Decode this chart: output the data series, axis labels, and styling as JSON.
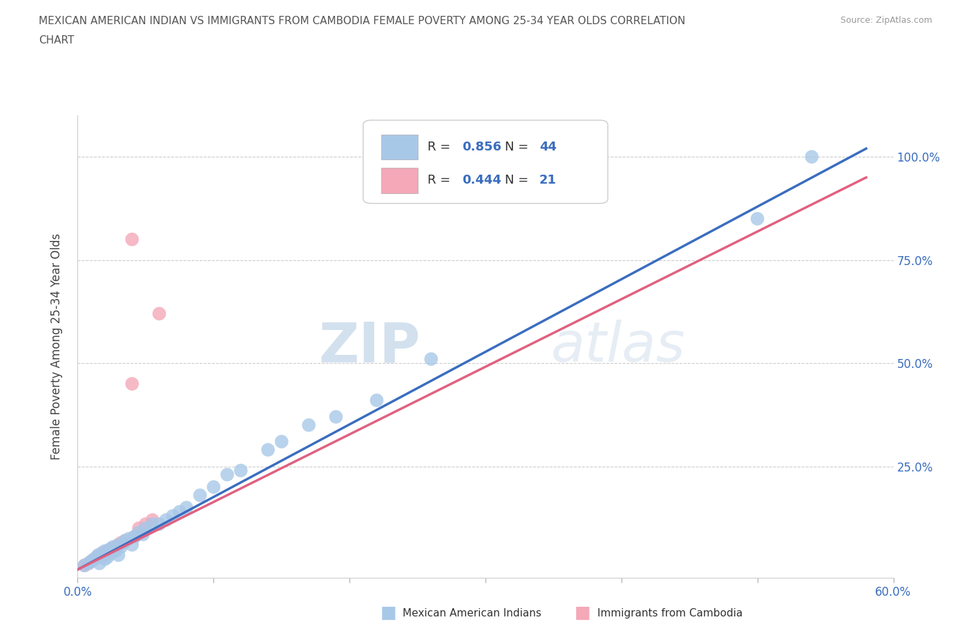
{
  "title_line1": "MEXICAN AMERICAN INDIAN VS IMMIGRANTS FROM CAMBODIA FEMALE POVERTY AMONG 25-34 YEAR OLDS CORRELATION",
  "title_line2": "CHART",
  "source": "Source: ZipAtlas.com",
  "ylabel": "Female Poverty Among 25-34 Year Olds",
  "xlim": [
    0.0,
    0.6
  ],
  "ylim": [
    -0.02,
    1.1
  ],
  "xticks": [
    0.0,
    0.1,
    0.2,
    0.3,
    0.4,
    0.5,
    0.6
  ],
  "ytick_positions": [
    0.0,
    0.25,
    0.5,
    0.75,
    1.0
  ],
  "yticklabels_right": [
    "",
    "25.0%",
    "50.0%",
    "75.0%",
    "100.0%"
  ],
  "watermark_zip": "ZIP",
  "watermark_atlas": "atlas",
  "R_blue": 0.856,
  "N_blue": 44,
  "R_pink": 0.444,
  "N_pink": 21,
  "legend_label_blue": "Mexican American Indians",
  "legend_label_pink": "Immigrants from Cambodia",
  "color_blue": "#a8c8e8",
  "color_pink": "#f4a8b8",
  "line_color_blue": "#3a6dbf",
  "line_color_pink": "#e06080",
  "text_color_blue": "#3a6dbf",
  "scatter_blue_x": [
    0.005,
    0.008,
    0.01,
    0.012,
    0.014,
    0.015,
    0.016,
    0.018,
    0.02,
    0.02,
    0.022,
    0.024,
    0.025,
    0.026,
    0.028,
    0.03,
    0.03,
    0.032,
    0.034,
    0.035,
    0.038,
    0.04,
    0.042,
    0.045,
    0.048,
    0.05,
    0.055,
    0.06,
    0.065,
    0.07,
    0.075,
    0.08,
    0.09,
    0.1,
    0.11,
    0.12,
    0.14,
    0.15,
    0.17,
    0.19,
    0.22,
    0.26,
    0.5,
    0.54
  ],
  "scatter_blue_y": [
    0.01,
    0.015,
    0.02,
    0.025,
    0.03,
    0.035,
    0.015,
    0.04,
    0.025,
    0.045,
    0.03,
    0.05,
    0.04,
    0.055,
    0.045,
    0.035,
    0.06,
    0.055,
    0.065,
    0.07,
    0.075,
    0.06,
    0.08,
    0.09,
    0.085,
    0.1,
    0.11,
    0.11,
    0.12,
    0.13,
    0.14,
    0.15,
    0.18,
    0.2,
    0.23,
    0.24,
    0.29,
    0.31,
    0.35,
    0.37,
    0.41,
    0.51,
    0.85,
    1.0
  ],
  "scatter_pink_x": [
    0.005,
    0.008,
    0.01,
    0.012,
    0.015,
    0.016,
    0.018,
    0.02,
    0.022,
    0.025,
    0.028,
    0.03,
    0.032,
    0.035,
    0.04,
    0.042,
    0.045,
    0.05,
    0.055,
    0.06,
    0.04
  ],
  "scatter_pink_y": [
    0.01,
    0.015,
    0.02,
    0.025,
    0.03,
    0.035,
    0.04,
    0.035,
    0.045,
    0.05,
    0.055,
    0.06,
    0.065,
    0.07,
    0.45,
    0.08,
    0.1,
    0.11,
    0.12,
    0.62,
    0.8
  ],
  "blue_line_x0": 0.0,
  "blue_line_y0": 0.0,
  "blue_line_x1": 0.58,
  "blue_line_y1": 1.02,
  "pink_line_x0": 0.0,
  "pink_line_y0": 0.0,
  "pink_line_x1": 0.58,
  "pink_line_y1": 0.95
}
